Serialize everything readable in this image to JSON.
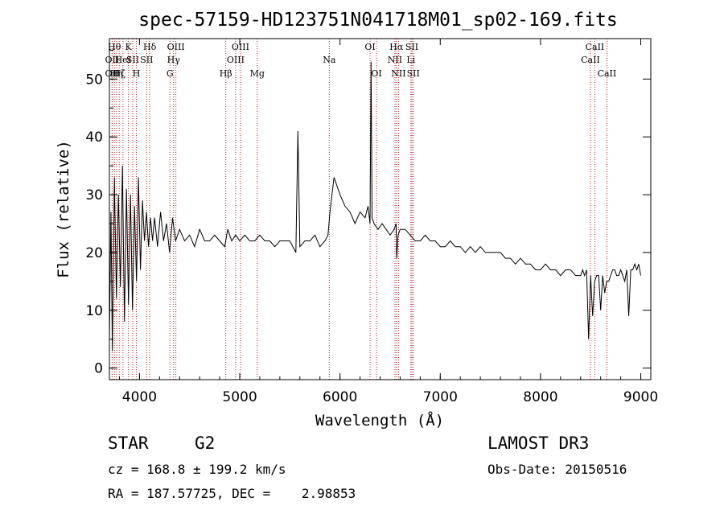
{
  "chart_data": {
    "type": "line",
    "title": "spec-57159-HD123751N041718M01_sp02-169.fits",
    "xlabel": "Wavelength (Å)",
    "ylabel": "Flux (relative)",
    "xlim": [
      3700,
      9100
    ],
    "ylim": [
      -2,
      57
    ],
    "x_ticks": [
      4000,
      5000,
      6000,
      7000,
      8000,
      9000
    ],
    "y_ticks": [
      0,
      10,
      20,
      30,
      40,
      50
    ],
    "grid": false,
    "legend": "none",
    "series": [
      {
        "color": "#000000",
        "x": [
          3700,
          3715,
          3730,
          3750,
          3770,
          3790,
          3810,
          3830,
          3850,
          3870,
          3890,
          3910,
          3930,
          3950,
          3970,
          3990,
          4010,
          4030,
          4050,
          4070,
          4090,
          4110,
          4130,
          4150,
          4180,
          4210,
          4240,
          4270,
          4300,
          4330,
          4360,
          4400,
          4450,
          4500,
          4550,
          4600,
          4650,
          4700,
          4750,
          4800,
          4850,
          4880,
          4920,
          4960,
          5000,
          5050,
          5100,
          5150,
          5200,
          5250,
          5300,
          5350,
          5400,
          5450,
          5500,
          5560,
          5580,
          5600,
          5650,
          5700,
          5750,
          5800,
          5850,
          5880,
          5900,
          5920,
          5940,
          5960,
          5980,
          6000,
          6050,
          6100,
          6150,
          6200,
          6250,
          6280,
          6300,
          6310,
          6320,
          6340,
          6380,
          6420,
          6460,
          6500,
          6540,
          6560,
          6565,
          6580,
          6600,
          6650,
          6700,
          6750,
          6800,
          6850,
          6900,
          6950,
          7000,
          7050,
          7100,
          7150,
          7200,
          7250,
          7300,
          7350,
          7400,
          7450,
          7500,
          7550,
          7600,
          7650,
          7700,
          7750,
          7800,
          7850,
          7900,
          7950,
          8000,
          8050,
          8100,
          8150,
          8200,
          8250,
          8300,
          8350,
          8400,
          8420,
          8440,
          8460,
          8480,
          8500,
          8520,
          8540,
          8560,
          8580,
          8600,
          8620,
          8640,
          8660,
          8680,
          8700,
          8720,
          8740,
          8760,
          8780,
          8800,
          8820,
          8840,
          8860,
          8880,
          8900,
          8920,
          8940,
          8960,
          8980,
          9000
        ],
        "y": [
          5,
          27,
          3,
          33,
          12,
          30,
          14,
          35,
          8,
          31,
          11,
          30,
          10,
          28,
          15,
          33,
          17,
          29,
          22,
          27,
          21,
          26,
          22,
          26,
          21,
          27,
          22,
          25,
          20,
          26,
          22,
          24,
          22,
          23,
          21,
          24,
          22,
          22,
          23,
          22,
          21,
          24,
          22,
          23,
          22,
          23,
          22,
          22,
          23,
          22,
          22,
          21,
          22,
          22,
          22,
          20,
          41,
          21,
          22,
          22,
          23,
          21,
          22,
          23,
          27,
          30,
          33,
          32,
          31,
          30,
          28,
          27,
          25,
          27,
          26,
          28,
          25,
          53,
          26,
          25,
          24,
          25,
          24,
          23,
          24,
          25,
          19,
          23,
          24,
          24,
          23,
          22,
          22,
          23,
          22,
          22,
          21,
          21,
          22,
          21,
          21,
          20,
          21,
          20,
          21,
          20,
          20,
          20,
          20,
          19,
          19,
          18,
          19,
          18,
          18,
          17,
          17,
          18,
          17,
          17,
          16,
          17,
          17,
          16,
          16,
          17,
          16,
          17,
          5,
          16,
          9,
          15,
          16,
          16,
          10,
          16,
          13,
          15,
          15,
          16,
          17,
          17,
          16,
          16,
          17,
          16,
          15,
          17,
          9,
          17,
          17,
          18,
          17,
          18,
          16
        ]
      }
    ],
    "lines": [
      {
        "x": 3727,
        "top": "OII",
        "row": 3
      },
      {
        "x": 3727,
        "top": "OII",
        "row": 2
      },
      {
        "x": 3750,
        "top": "Hθ",
        "row": 1
      },
      {
        "x": 3771,
        "top": "Hη",
        "row": 3
      },
      {
        "x": 3798,
        "top": "Hζ",
        "row": 3
      },
      {
        "x": 3835,
        "top": "HeI",
        "row": 2
      },
      {
        "x": 3889,
        "top": "K",
        "row": 1
      },
      {
        "x": 3933,
        "top": "SII",
        "row": 2
      },
      {
        "x": 3969,
        "top": "H",
        "row": 3
      },
      {
        "x": 4102,
        "top": "Hδ",
        "row": 1
      },
      {
        "x": 4072,
        "top": "SII",
        "row": 2
      },
      {
        "x": 4304,
        "top": "G",
        "row": 3
      },
      {
        "x": 4340,
        "top": "Hγ",
        "row": 2
      },
      {
        "x": 4363,
        "top": "OIII",
        "row": 1
      },
      {
        "x": 4861,
        "top": "Hβ",
        "row": 3
      },
      {
        "x": 4959,
        "top": "OIII",
        "row": 2
      },
      {
        "x": 5007,
        "top": "OIII",
        "row": 1
      },
      {
        "x": 5175,
        "top": "Mg",
        "row": 3
      },
      {
        "x": 5893,
        "top": "Na",
        "row": 2
      },
      {
        "x": 6300,
        "top": "OI",
        "row": 1
      },
      {
        "x": 6364,
        "top": "OI",
        "row": 3
      },
      {
        "x": 6548,
        "top": "NII",
        "row": 2
      },
      {
        "x": 6563,
        "top": "Hα",
        "row": 1
      },
      {
        "x": 6584,
        "top": "NII",
        "row": 3
      },
      {
        "x": 6707,
        "top": "Li",
        "row": 2
      },
      {
        "x": 6717,
        "top": "SII",
        "row": 1
      },
      {
        "x": 6731,
        "top": "SII",
        "row": 3
      },
      {
        "x": 8498,
        "top": "CaII",
        "row": 2
      },
      {
        "x": 8542,
        "top": "CaII",
        "row": 1
      },
      {
        "x": 8662,
        "top": "CaII",
        "row": 3
      }
    ]
  },
  "info": {
    "class": "STAR",
    "subclass": "G2",
    "survey": "LAMOST DR3",
    "cz": "cz = 168.8 ± 199.2 km/s",
    "obs_date": "Obs-Date: 20150516",
    "coords": "RA = 187.57725, DEC =    2.98853"
  }
}
